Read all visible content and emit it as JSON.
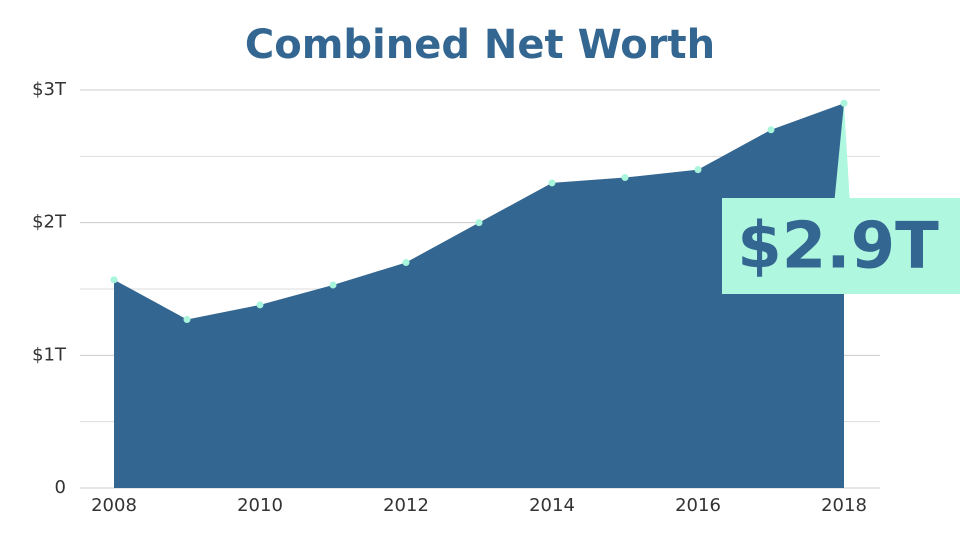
{
  "chart_data": {
    "type": "area",
    "title": "Combined Net Worth",
    "x": [
      2008,
      2009,
      2010,
      2011,
      2012,
      2013,
      2014,
      2015,
      2016,
      2017,
      2018
    ],
    "values": [
      1.57,
      1.27,
      1.38,
      1.53,
      1.7,
      2.0,
      2.3,
      2.34,
      2.4,
      2.7,
      2.9
    ],
    "value_labels": [
      null,
      null,
      null,
      null,
      null,
      null,
      null,
      null,
      null,
      null,
      "$2.9T"
    ],
    "color": "#336690",
    "marker_color": "#a8f5dc",
    "label_background": "#b0f7df",
    "xlim": [
      2008,
      2018
    ],
    "xticks": [
      2008,
      2010,
      2012,
      2014,
      2016,
      2018
    ],
    "ylim": [
      0,
      3
    ],
    "yticks": [
      0,
      {
        "value": 1,
        "label": "$1T"
      },
      {
        "value": 2,
        "label": "$2T"
      },
      {
        "value": 3,
        "label": "$3T"
      }
    ],
    "minor_yticks": [
      0.5,
      1.5,
      2.5
    ],
    "grid": true
  }
}
